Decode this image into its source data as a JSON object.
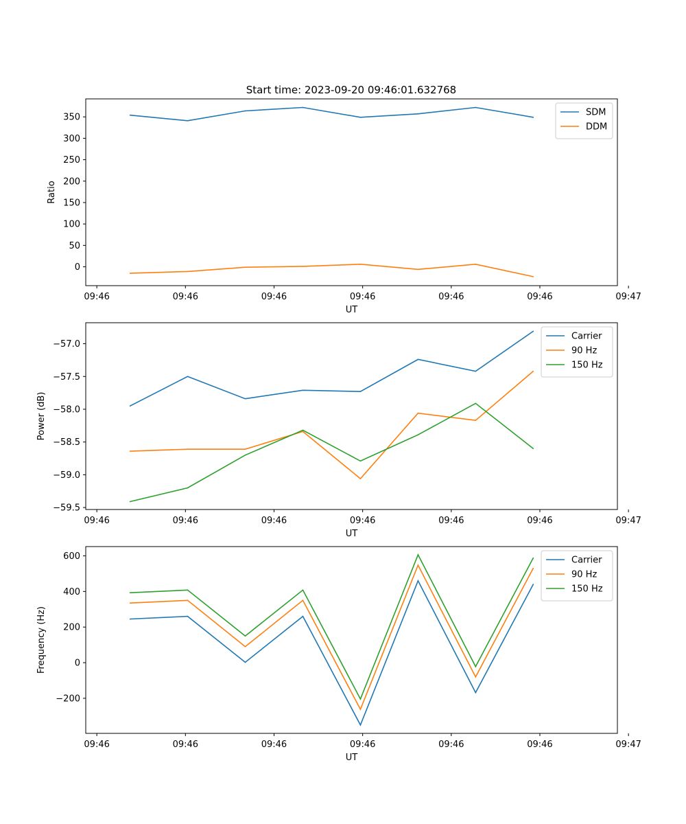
{
  "title": "Start time: 2023-09-20 09:46:01.632768",
  "chart_data": [
    {
      "type": "line",
      "ylabel": "Ratio",
      "xlabel": "UT",
      "xlim": [
        0,
        12
      ],
      "x": [
        1,
        2.3,
        3.6,
        4.9,
        6.2,
        7.5,
        8.8,
        10.1
      ],
      "xticks": [
        0.25,
        2.25,
        4.25,
        6.25,
        8.25,
        10.25,
        12.25
      ],
      "xticklabels": [
        "09:46",
        "09:46",
        "09:46",
        "09:46",
        "09:46",
        "09:46",
        "09:47"
      ],
      "ylim": [
        -44,
        392
      ],
      "yticks": [
        0,
        50,
        100,
        150,
        200,
        250,
        300,
        350
      ],
      "yticklabels": [
        "0",
        "50",
        "100",
        "150",
        "200",
        "250",
        "300",
        "350"
      ],
      "legend": "top-right",
      "series": [
        {
          "name": "SDM",
          "color": "#1f77b4",
          "values": [
            354,
            341,
            364,
            372,
            349,
            357,
            372,
            349
          ]
        },
        {
          "name": "DDM",
          "color": "#ff7f0e",
          "values": [
            -15,
            -11,
            -1,
            1,
            6,
            -6,
            6,
            -23
          ]
        }
      ]
    },
    {
      "type": "line",
      "ylabel": "Power (dB)",
      "xlabel": "UT",
      "xlim": [
        0,
        12
      ],
      "x": [
        1,
        2.3,
        3.6,
        4.9,
        6.2,
        7.5,
        8.8,
        10.1
      ],
      "xticks": [
        0.25,
        2.25,
        4.25,
        6.25,
        8.25,
        10.25,
        12.25
      ],
      "xticklabels": [
        "09:46",
        "09:46",
        "09:46",
        "09:46",
        "09:46",
        "09:46",
        "09:47"
      ],
      "ylim": [
        -59.53,
        -56.68
      ],
      "yticks": [
        -59.5,
        -59.0,
        -58.5,
        -58.0,
        -57.5,
        -57.0
      ],
      "yticklabels": [
        "−59.5",
        "−59.0",
        "−58.5",
        "−58.0",
        "−57.5",
        "−57.0"
      ],
      "legend": "top-right",
      "series": [
        {
          "name": "Carrier",
          "color": "#1f77b4",
          "values": [
            -57.95,
            -57.5,
            -57.84,
            -57.71,
            -57.73,
            -57.24,
            -57.42,
            -56.81
          ]
        },
        {
          "name": "90 Hz",
          "color": "#ff7f0e",
          "values": [
            -58.64,
            -58.61,
            -58.61,
            -58.34,
            -59.06,
            -58.06,
            -58.17,
            -57.42
          ]
        },
        {
          "name": "150 Hz",
          "color": "#2ca02c",
          "values": [
            -59.41,
            -59.2,
            -58.7,
            -58.32,
            -58.79,
            -58.39,
            -57.91,
            -58.6
          ]
        }
      ]
    },
    {
      "type": "line",
      "ylabel": "Frequency (Hz)",
      "xlabel": "UT",
      "xlim": [
        0,
        12
      ],
      "x": [
        1,
        2.3,
        3.6,
        4.9,
        6.2,
        7.5,
        8.8,
        10.1
      ],
      "xticks": [
        0.25,
        2.25,
        4.25,
        6.25,
        8.25,
        10.25,
        12.25
      ],
      "xticklabels": [
        "09:46",
        "09:46",
        "09:46",
        "09:46",
        "09:46",
        "09:46",
        "09:47"
      ],
      "ylim": [
        -397,
        652
      ],
      "yticks": [
        -200,
        0,
        200,
        400,
        600
      ],
      "yticklabels": [
        "−200",
        "0",
        "200",
        "400",
        "600"
      ],
      "legend": "top-right",
      "series": [
        {
          "name": "Carrier",
          "color": "#1f77b4",
          "values": [
            245,
            260,
            2,
            260,
            -350,
            460,
            -168,
            440
          ]
        },
        {
          "name": "90 Hz",
          "color": "#ff7f0e",
          "values": [
            335,
            350,
            90,
            350,
            -262,
            548,
            -80,
            530
          ]
        },
        {
          "name": "150 Hz",
          "color": "#2ca02c",
          "values": [
            393,
            408,
            150,
            408,
            -204,
            606,
            -22,
            588
          ]
        }
      ]
    }
  ]
}
